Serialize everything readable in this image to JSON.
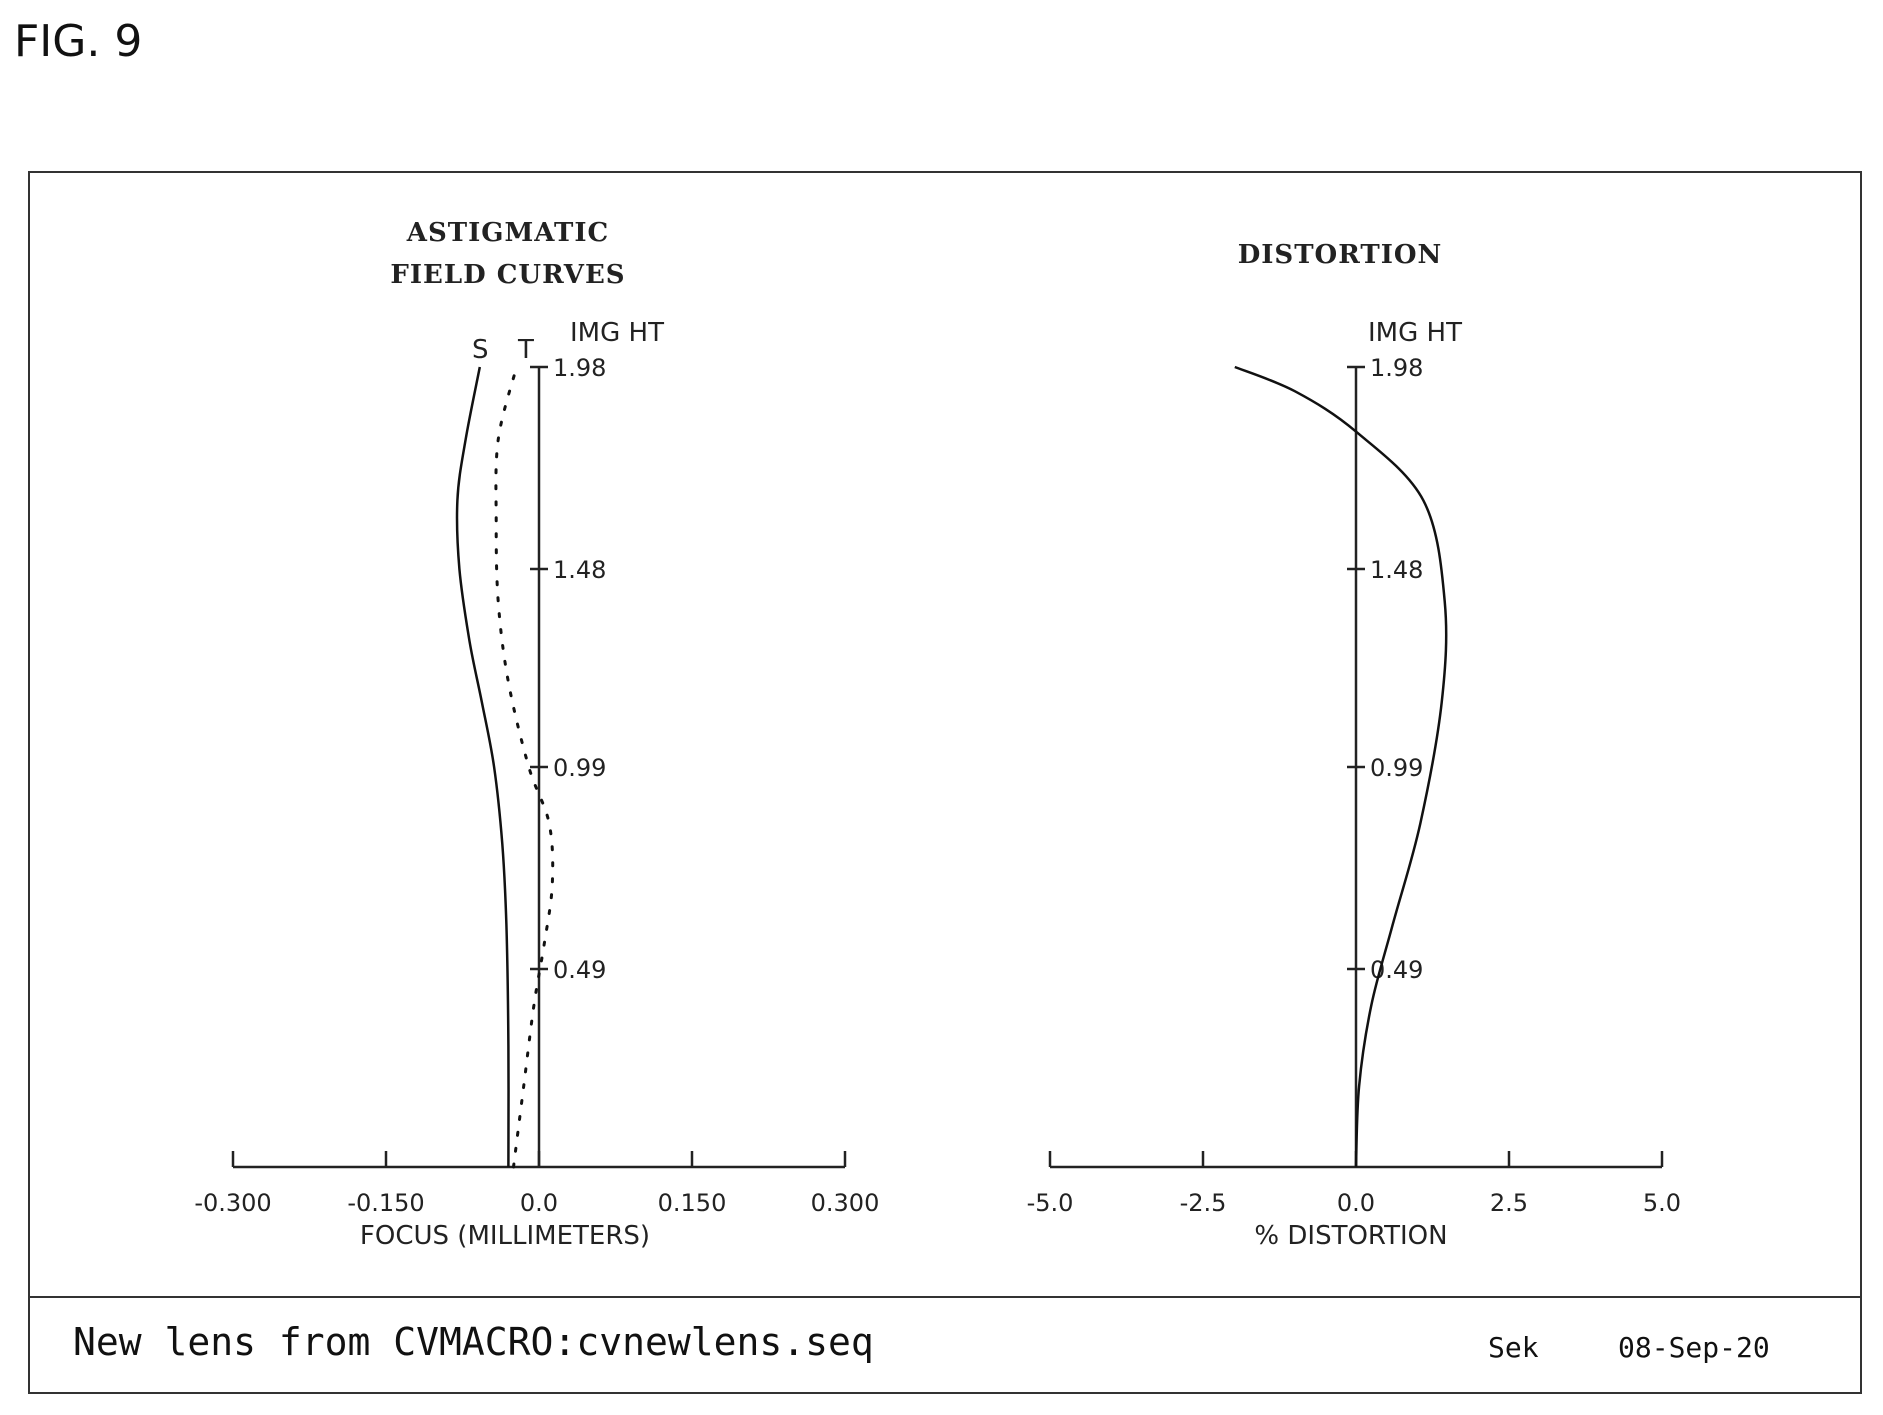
{
  "figure_label": "FIG. 9",
  "footer": {
    "left_text": "New lens from CVMACRO:cvnewlens.seq",
    "author": "Sek",
    "date": "08-Sep-20"
  },
  "chart_data": [
    {
      "type": "line",
      "title": "ASTIGMATIC",
      "subtitle": "FIELD CURVES",
      "xlabel": "FOCUS (MILLIMETERS)",
      "ylabel": "IMG HT",
      "xlim": [
        -0.3,
        0.3
      ],
      "ylim": [
        0,
        1.98
      ],
      "x_ticks": [
        "-0.300",
        "-0.150",
        "0.0",
        "0.150",
        "0.300"
      ],
      "x_tick_values": [
        -0.3,
        -0.15,
        0.0,
        0.15,
        0.3
      ],
      "y_ticks": [
        "0.49",
        "0.99",
        "1.48",
        "1.98"
      ],
      "y_tick_values": [
        0.49,
        0.99,
        1.48,
        1.98
      ],
      "series_labels": [
        "S",
        "T"
      ],
      "series": [
        {
          "name": "S",
          "style": "solid",
          "points": [
            [
              -0.03,
              0.0
            ],
            [
              -0.03,
              0.3
            ],
            [
              -0.032,
              0.6
            ],
            [
              -0.036,
              0.8
            ],
            [
              -0.044,
              0.99
            ],
            [
              -0.056,
              1.15
            ],
            [
              -0.068,
              1.3
            ],
            [
              -0.078,
              1.48
            ],
            [
              -0.08,
              1.65
            ],
            [
              -0.072,
              1.8
            ],
            [
              -0.058,
              1.98
            ]
          ]
        },
        {
          "name": "T",
          "style": "dotted",
          "points": [
            [
              -0.025,
              0.0
            ],
            [
              -0.015,
              0.2
            ],
            [
              -0.005,
              0.4
            ],
            [
              0.005,
              0.55
            ],
            [
              0.013,
              0.7
            ],
            [
              0.01,
              0.85
            ],
            [
              -0.01,
              0.99
            ],
            [
              -0.03,
              1.2
            ],
            [
              -0.04,
              1.4
            ],
            [
              -0.042,
              1.6
            ],
            [
              -0.04,
              1.8
            ],
            [
              -0.022,
              1.98
            ]
          ]
        }
      ]
    },
    {
      "type": "line",
      "title": "DISTORTION",
      "xlabel": "% DISTORTION",
      "ylabel": "IMG HT",
      "xlim": [
        -5.0,
        5.0
      ],
      "ylim": [
        0,
        1.98
      ],
      "x_ticks": [
        "-5.0",
        "-2.5",
        "0.0",
        "2.5",
        "5.0"
      ],
      "x_tick_values": [
        -5.0,
        -2.5,
        0.0,
        2.5,
        5.0
      ],
      "y_ticks": [
        "0.49",
        "0.99",
        "1.48",
        "1.98"
      ],
      "y_tick_values": [
        0.49,
        0.99,
        1.48,
        1.98
      ],
      "series": [
        {
          "style": "solid",
          "points": [
            [
              0.0,
              0.0
            ],
            [
              0.05,
              0.2
            ],
            [
              0.25,
              0.4
            ],
            [
              0.6,
              0.6
            ],
            [
              1.05,
              0.85
            ],
            [
              1.4,
              1.15
            ],
            [
              1.45,
              1.4
            ],
            [
              1.1,
              1.65
            ],
            [
              0.0,
              1.82
            ],
            [
              -1.0,
              1.92
            ],
            [
              -1.98,
              1.98
            ]
          ]
        }
      ]
    }
  ]
}
